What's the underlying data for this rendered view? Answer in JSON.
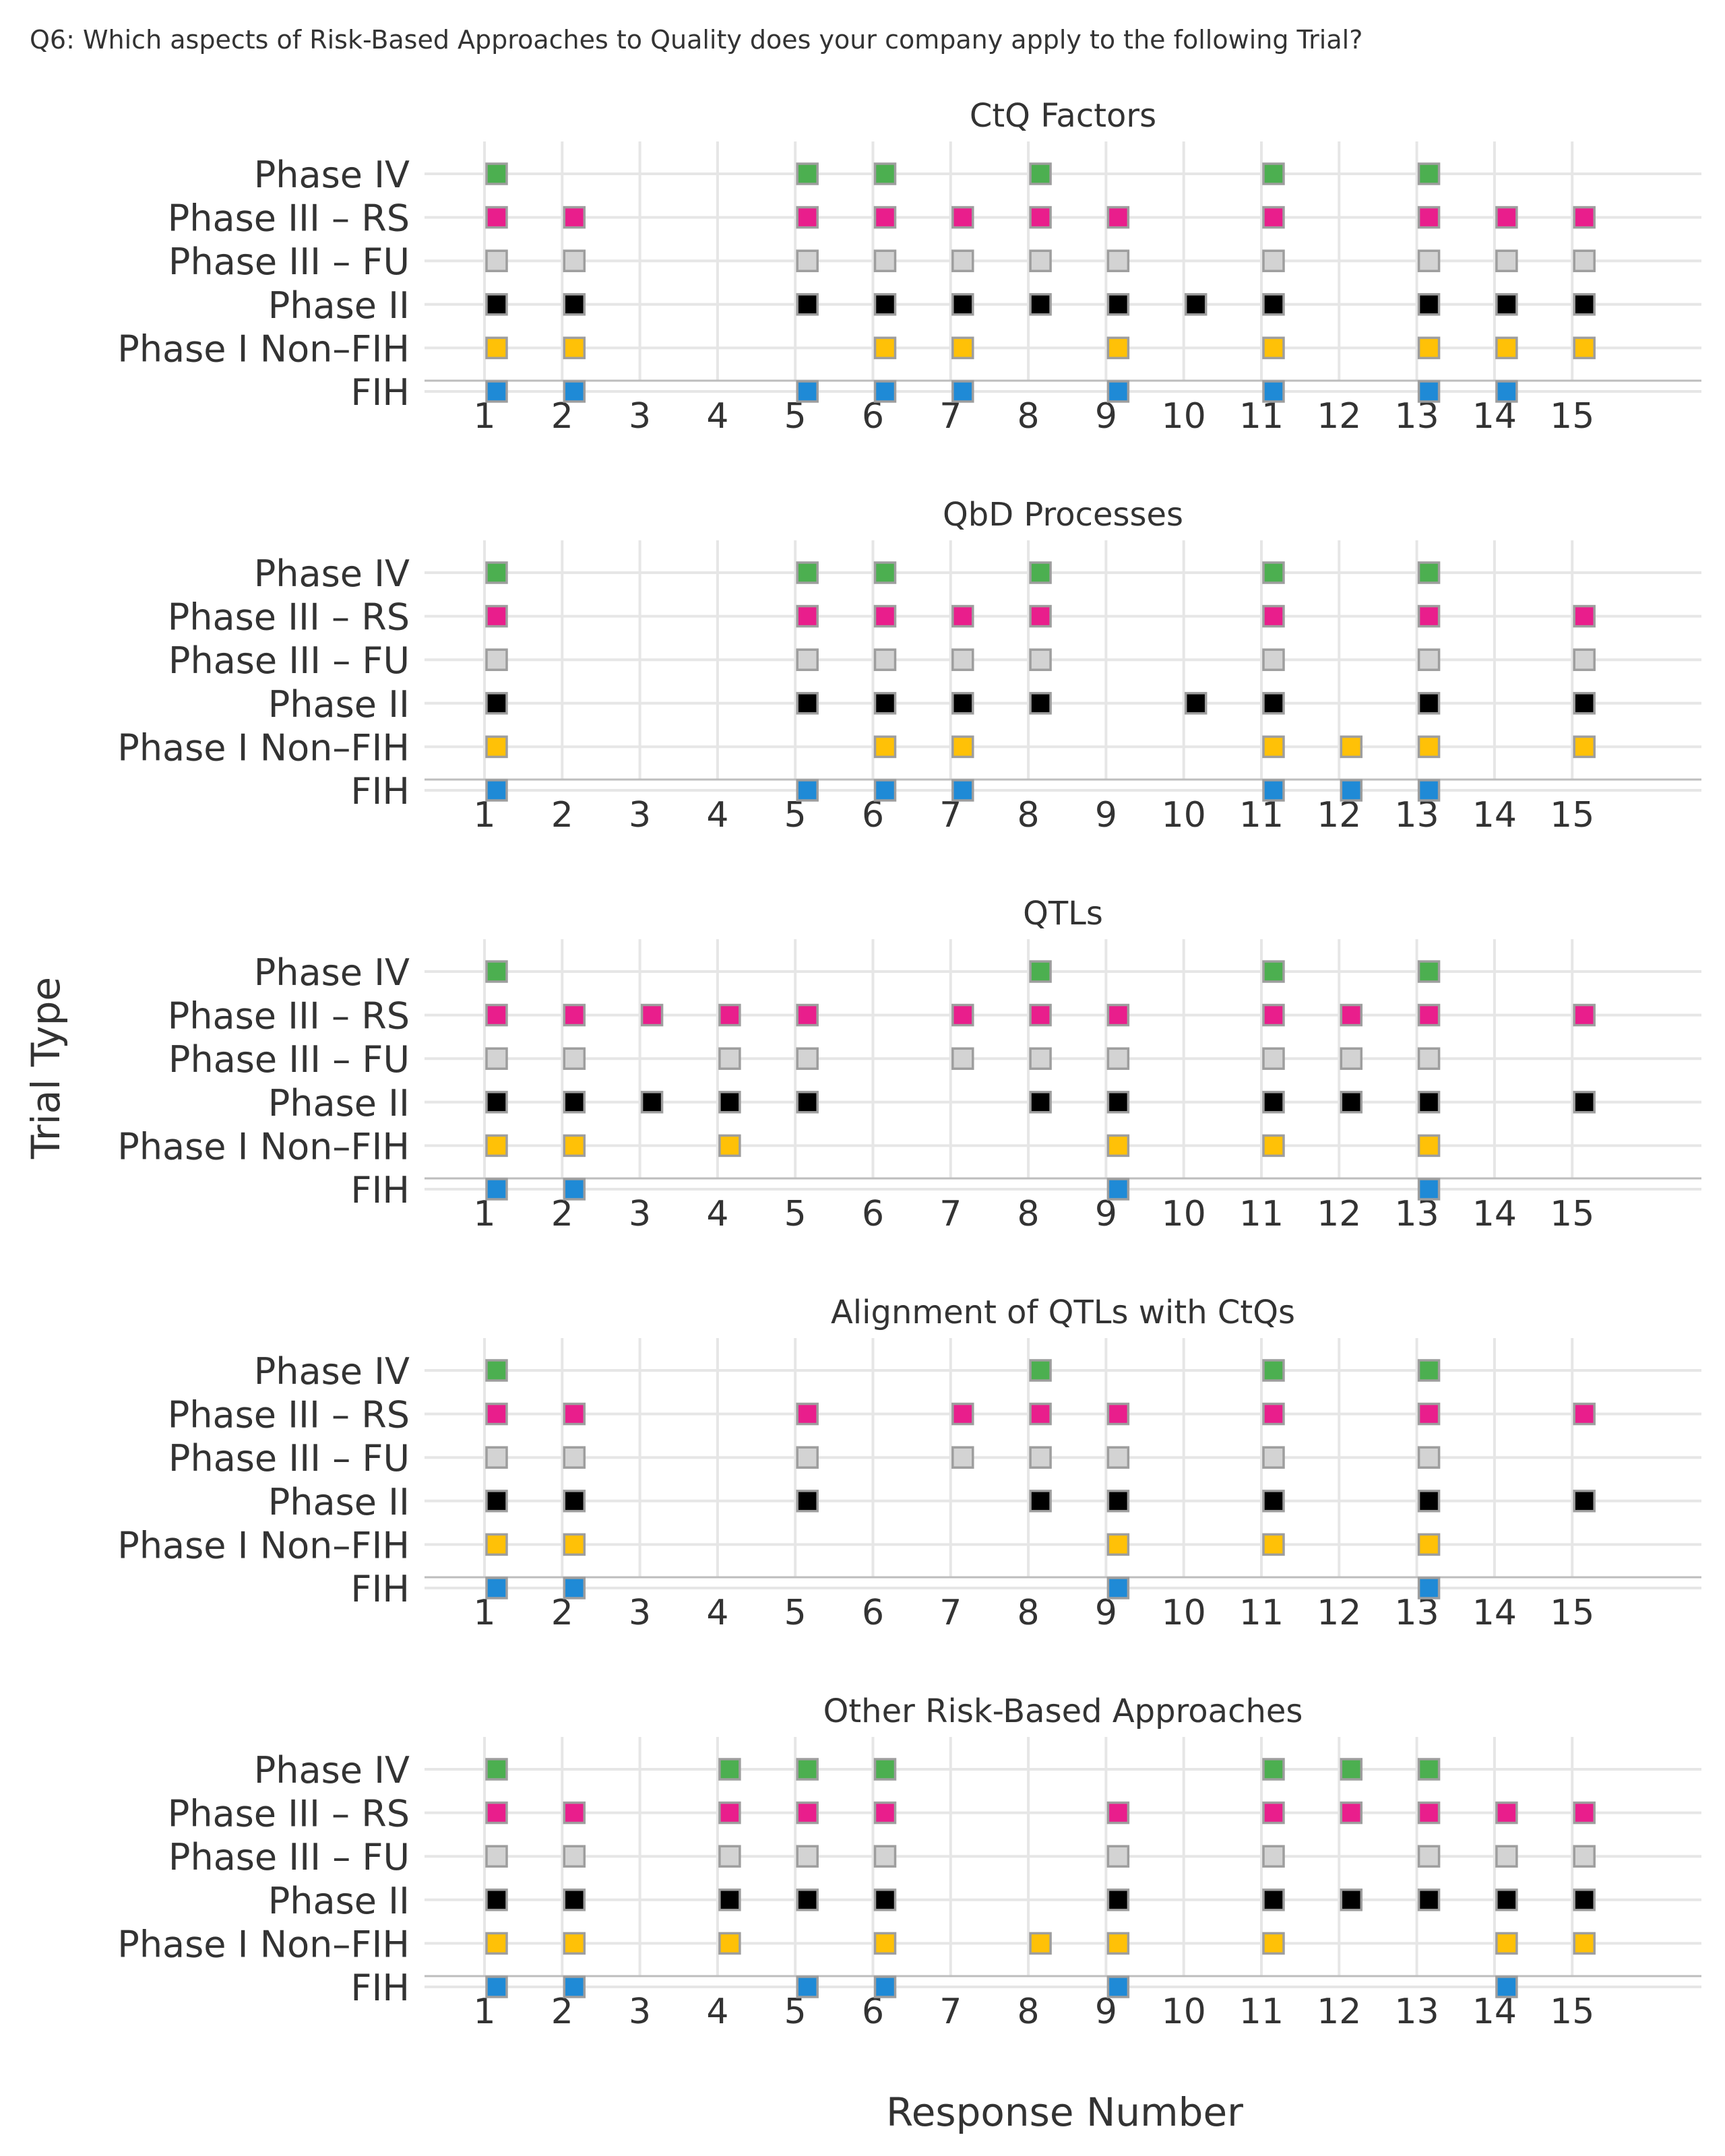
{
  "figure": {
    "question": "Q6: Which aspects of Risk-Based Approaches to Quality does your company apply to the following Trial?",
    "ylabel": "Trial Type",
    "xlabel": "Response Number"
  },
  "colors": {
    "Phase IV": "#4caf50",
    "Phase III – RS": "#e91e8c",
    "Phase III – FU": "#d3d3d3",
    "Phase II": "#000000",
    "Phase I Non–FIH": "#ffc107",
    "FIH": "#1f8ad6",
    "marker_border": "#9e9e9e",
    "grid": "#e6e6e6",
    "axis": "#bdbdbd",
    "text": "#333333"
  },
  "chart_data": [
    {
      "type": "scatter",
      "title": "CtQ Factors",
      "x_ticks": [
        1,
        2,
        3,
        4,
        5,
        6,
        7,
        8,
        9,
        10,
        11,
        12,
        13,
        14,
        15
      ],
      "categories": [
        "Phase IV",
        "Phase III – RS",
        "Phase III – FU",
        "Phase II",
        "Phase I Non–FIH",
        "FIH"
      ],
      "series": [
        {
          "name": "Phase IV",
          "x": [
            1,
            5,
            6,
            8,
            11,
            13
          ]
        },
        {
          "name": "Phase III – RS",
          "x": [
            1,
            2,
            5,
            6,
            7,
            8,
            9,
            11,
            13,
            14,
            15
          ]
        },
        {
          "name": "Phase III – FU",
          "x": [
            1,
            2,
            5,
            6,
            7,
            8,
            9,
            11,
            13,
            14,
            15
          ]
        },
        {
          "name": "Phase II",
          "x": [
            1,
            2,
            5,
            6,
            7,
            8,
            9,
            10,
            11,
            13,
            14,
            15
          ]
        },
        {
          "name": "Phase I Non–FIH",
          "x": [
            1,
            2,
            6,
            7,
            9,
            11,
            13,
            14,
            15
          ]
        },
        {
          "name": "FIH",
          "x": [
            1,
            2,
            5,
            6,
            7,
            9,
            11,
            13,
            14
          ]
        }
      ]
    },
    {
      "type": "scatter",
      "title": "QbD Processes",
      "x_ticks": [
        1,
        2,
        3,
        4,
        5,
        6,
        7,
        8,
        9,
        10,
        11,
        12,
        13,
        14,
        15
      ],
      "categories": [
        "Phase IV",
        "Phase III – RS",
        "Phase III – FU",
        "Phase II",
        "Phase I Non–FIH",
        "FIH"
      ],
      "series": [
        {
          "name": "Phase IV",
          "x": [
            1,
            5,
            6,
            8,
            11,
            13
          ]
        },
        {
          "name": "Phase III – RS",
          "x": [
            1,
            5,
            6,
            7,
            8,
            11,
            13,
            15
          ]
        },
        {
          "name": "Phase III – FU",
          "x": [
            1,
            5,
            6,
            7,
            8,
            11,
            13,
            15
          ]
        },
        {
          "name": "Phase II",
          "x": [
            1,
            5,
            6,
            7,
            8,
            10,
            11,
            13,
            15
          ]
        },
        {
          "name": "Phase I Non–FIH",
          "x": [
            1,
            6,
            7,
            11,
            12,
            13,
            15
          ]
        },
        {
          "name": "FIH",
          "x": [
            1,
            5,
            6,
            7,
            11,
            12,
            13
          ]
        }
      ]
    },
    {
      "type": "scatter",
      "title": "QTLs",
      "x_ticks": [
        1,
        2,
        3,
        4,
        5,
        6,
        7,
        8,
        9,
        10,
        11,
        12,
        13,
        14,
        15
      ],
      "categories": [
        "Phase IV",
        "Phase III – RS",
        "Phase III – FU",
        "Phase II",
        "Phase I Non–FIH",
        "FIH"
      ],
      "series": [
        {
          "name": "Phase IV",
          "x": [
            1,
            8,
            11,
            13
          ]
        },
        {
          "name": "Phase III – RS",
          "x": [
            1,
            2,
            3,
            4,
            5,
            7,
            8,
            9,
            11,
            12,
            13,
            15
          ]
        },
        {
          "name": "Phase III – FU",
          "x": [
            1,
            2,
            4,
            5,
            7,
            8,
            9,
            11,
            12,
            13
          ]
        },
        {
          "name": "Phase II",
          "x": [
            1,
            2,
            3,
            4,
            5,
            8,
            9,
            11,
            12,
            13,
            15
          ]
        },
        {
          "name": "Phase I Non–FIH",
          "x": [
            1,
            2,
            4,
            9,
            11,
            13
          ]
        },
        {
          "name": "FIH",
          "x": [
            1,
            2,
            9,
            13
          ]
        }
      ]
    },
    {
      "type": "scatter",
      "title": "Alignment of QTLs with CtQs",
      "x_ticks": [
        1,
        2,
        3,
        4,
        5,
        6,
        7,
        8,
        9,
        10,
        11,
        12,
        13,
        14,
        15
      ],
      "categories": [
        "Phase IV",
        "Phase III – RS",
        "Phase III – FU",
        "Phase II",
        "Phase I Non–FIH",
        "FIH"
      ],
      "series": [
        {
          "name": "Phase IV",
          "x": [
            1,
            8,
            11,
            13
          ]
        },
        {
          "name": "Phase III – RS",
          "x": [
            1,
            2,
            5,
            7,
            8,
            9,
            11,
            13,
            15
          ]
        },
        {
          "name": "Phase III – FU",
          "x": [
            1,
            2,
            5,
            7,
            8,
            9,
            11,
            13
          ]
        },
        {
          "name": "Phase II",
          "x": [
            1,
            2,
            5,
            8,
            9,
            11,
            13,
            15
          ]
        },
        {
          "name": "Phase I Non–FIH",
          "x": [
            1,
            2,
            9,
            11,
            13
          ]
        },
        {
          "name": "FIH",
          "x": [
            1,
            2,
            9,
            13
          ]
        }
      ]
    },
    {
      "type": "scatter",
      "title": "Other Risk-Based Approaches",
      "x_ticks": [
        1,
        2,
        3,
        4,
        5,
        6,
        7,
        8,
        9,
        10,
        11,
        12,
        13,
        14,
        15
      ],
      "categories": [
        "Phase IV",
        "Phase III – RS",
        "Phase III – FU",
        "Phase II",
        "Phase I Non–FIH",
        "FIH"
      ],
      "series": [
        {
          "name": "Phase IV",
          "x": [
            1,
            4,
            5,
            6,
            11,
            12,
            13
          ]
        },
        {
          "name": "Phase III – RS",
          "x": [
            1,
            2,
            4,
            5,
            6,
            9,
            11,
            12,
            13,
            14,
            15
          ]
        },
        {
          "name": "Phase III – FU",
          "x": [
            1,
            2,
            4,
            5,
            6,
            9,
            11,
            13,
            14,
            15
          ]
        },
        {
          "name": "Phase II",
          "x": [
            1,
            2,
            4,
            5,
            6,
            9,
            11,
            12,
            13,
            14,
            15
          ]
        },
        {
          "name": "Phase I Non–FIH",
          "x": [
            1,
            2,
            4,
            6,
            8,
            9,
            11,
            14,
            15
          ]
        },
        {
          "name": "FIH",
          "x": [
            1,
            2,
            5,
            6,
            9,
            14
          ]
        }
      ]
    }
  ]
}
